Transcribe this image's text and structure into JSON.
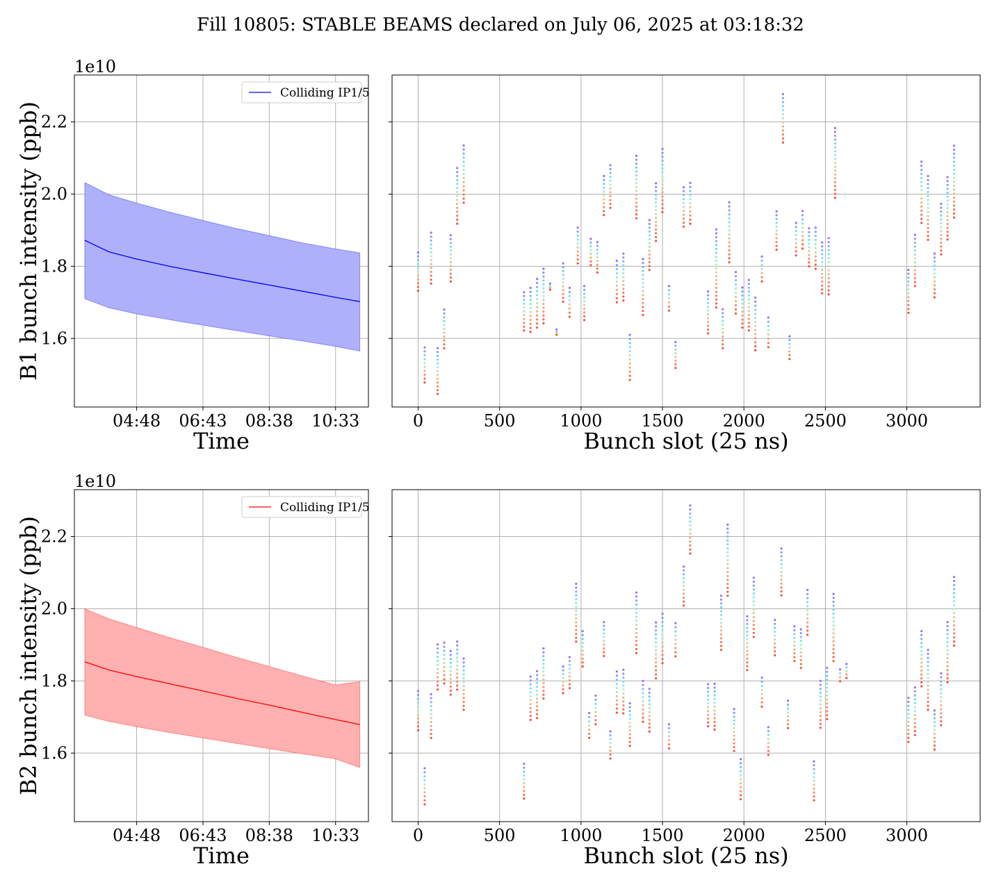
{
  "title": "Fill 10805: STABLE BEAMS declared on July 06, 2025 at 03:18:32",
  "colors": {
    "b1_line": "#0000ff",
    "b1_fill": "#aeb0fa",
    "b2_line": "#ff0000",
    "b2_fill": "#ffb0b0",
    "grid": "#b0b0b0"
  },
  "chart_data": [
    {
      "type": "area",
      "panel": "B1 time",
      "xlabel": "Time",
      "ylabel": "B1 bunch intensity (ppb)",
      "offset_label": "1e10",
      "x_ticks": [
        "04:48",
        "06:43",
        "08:38",
        "10:33"
      ],
      "y_ticks": [
        "1.6",
        "1.8",
        "2.0",
        "2.2"
      ],
      "ylim": [
        1.41,
        2.33
      ],
      "legend": {
        "label": "Colliding IP1/5",
        "position": "top-right"
      },
      "grid": true,
      "series": [
        {
          "x": [
            "03:18",
            "04:00",
            "04:48",
            "05:45",
            "06:43",
            "07:40",
            "08:38",
            "09:35",
            "10:33",
            "11:15"
          ],
          "mean": [
            1.872,
            1.84,
            1.82,
            1.8,
            1.782,
            1.765,
            1.748,
            1.731,
            1.714,
            1.702
          ],
          "upper": [
            2.032,
            1.998,
            1.975,
            1.95,
            1.927,
            1.905,
            1.885,
            1.865,
            1.848,
            1.837
          ],
          "lower": [
            1.71,
            1.685,
            1.668,
            1.652,
            1.637,
            1.622,
            1.607,
            1.593,
            1.578,
            1.565
          ]
        }
      ]
    },
    {
      "type": "scatter",
      "panel": "B1 slots",
      "xlabel": "Bunch slot (25 ns)",
      "x_ticks": [
        "0",
        "500",
        "1000",
        "1500",
        "2000",
        "2500",
        "3000"
      ],
      "xlim": [
        -160,
        3450
      ],
      "ylim": [
        1.41,
        2.33
      ],
      "grid": true,
      "columns": [
        [
          0,
          1.732,
          1.838
        ],
        [
          40,
          1.478,
          1.575
        ],
        [
          80,
          1.752,
          1.893
        ],
        [
          120,
          1.446,
          1.573
        ],
        [
          160,
          1.573,
          1.68
        ],
        [
          200,
          1.758,
          1.886
        ],
        [
          240,
          1.918,
          2.072
        ],
        [
          280,
          1.976,
          2.135
        ],
        [
          650,
          1.622,
          1.728
        ],
        [
          690,
          1.618,
          1.74
        ],
        [
          730,
          1.63,
          1.765
        ],
        [
          770,
          1.642,
          1.793
        ],
        [
          810,
          1.735,
          1.752
        ],
        [
          850,
          1.61,
          1.625
        ],
        [
          890,
          1.702,
          1.808
        ],
        [
          930,
          1.66,
          1.74
        ],
        [
          980,
          1.808,
          1.907
        ],
        [
          1020,
          1.651,
          1.745
        ],
        [
          1060,
          1.803,
          1.876
        ],
        [
          1100,
          1.783,
          1.867
        ],
        [
          1140,
          1.942,
          2.05
        ],
        [
          1180,
          1.962,
          2.08
        ],
        [
          1220,
          1.7,
          1.815
        ],
        [
          1260,
          1.705,
          1.835
        ],
        [
          1300,
          1.485,
          1.61
        ],
        [
          1340,
          1.933,
          2.106
        ],
        [
          1380,
          1.665,
          1.82
        ],
        [
          1420,
          1.79,
          1.928
        ],
        [
          1460,
          1.87,
          2.03
        ],
        [
          1500,
          1.95,
          2.125
        ],
        [
          1540,
          1.677,
          1.745
        ],
        [
          1580,
          1.518,
          1.59
        ],
        [
          1630,
          1.91,
          2.019
        ],
        [
          1670,
          1.918,
          2.031
        ],
        [
          1780,
          1.614,
          1.73
        ],
        [
          1830,
          1.686,
          1.902
        ],
        [
          1870,
          1.573,
          1.681
        ],
        [
          1910,
          1.811,
          1.977
        ],
        [
          1950,
          1.669,
          1.784
        ],
        [
          1990,
          1.63,
          1.741
        ],
        [
          2030,
          1.622,
          1.762
        ],
        [
          2070,
          1.567,
          1.713
        ],
        [
          2110,
          1.758,
          1.827
        ],
        [
          2150,
          1.576,
          1.658
        ],
        [
          2200,
          1.846,
          1.952
        ],
        [
          2240,
          2.143,
          2.277
        ],
        [
          2280,
          1.543,
          1.606
        ],
        [
          2320,
          1.83,
          1.92
        ],
        [
          2360,
          1.849,
          1.953
        ],
        [
          2400,
          1.8,
          1.905
        ],
        [
          2440,
          1.793,
          1.907
        ],
        [
          2480,
          1.725,
          1.866
        ],
        [
          2520,
          1.722,
          1.878
        ],
        [
          2560,
          1.99,
          2.183
        ],
        [
          3010,
          1.671,
          1.79
        ],
        [
          3050,
          1.745,
          1.887
        ],
        [
          3090,
          1.92,
          2.09
        ],
        [
          3130,
          1.873,
          2.05
        ],
        [
          3170,
          1.714,
          1.835
        ],
        [
          3210,
          1.833,
          1.973
        ],
        [
          3250,
          1.874,
          2.047
        ],
        [
          3290,
          1.935,
          2.134
        ]
      ]
    },
    {
      "type": "area",
      "panel": "B2 time",
      "xlabel": "Time",
      "ylabel": "B2 bunch intensity (ppb)",
      "offset_label": "1e10",
      "x_ticks": [
        "04:48",
        "06:43",
        "08:38",
        "10:33"
      ],
      "y_ticks": [
        "1.6",
        "1.8",
        "2.0",
        "2.2"
      ],
      "ylim": [
        1.41,
        2.33
      ],
      "legend": {
        "label": "Colliding IP1/5",
        "position": "top-right"
      },
      "grid": true,
      "series": [
        {
          "x": [
            "03:18",
            "04:00",
            "04:48",
            "05:45",
            "06:43",
            "07:40",
            "08:38",
            "09:35",
            "10:33",
            "11:15"
          ],
          "mean": [
            1.853,
            1.83,
            1.812,
            1.792,
            1.772,
            1.752,
            1.733,
            1.713,
            1.693,
            1.679
          ],
          "upper": [
            2.0,
            1.972,
            1.948,
            1.92,
            1.893,
            1.866,
            1.84,
            1.814,
            1.789,
            1.798
          ],
          "lower": [
            1.705,
            1.688,
            1.673,
            1.657,
            1.642,
            1.627,
            1.612,
            1.598,
            1.584,
            1.56
          ]
        }
      ]
    },
    {
      "type": "scatter",
      "panel": "B2 slots",
      "xlabel": "Bunch slot (25 ns)",
      "x_ticks": [
        "0",
        "500",
        "1000",
        "1500",
        "2000",
        "2500",
        "3000"
      ],
      "xlim": [
        -160,
        3450
      ],
      "ylim": [
        1.41,
        2.33
      ],
      "grid": true,
      "columns": [
        [
          0,
          1.663,
          1.772
        ],
        [
          40,
          1.458,
          1.558
        ],
        [
          80,
          1.642,
          1.763
        ],
        [
          120,
          1.776,
          1.901
        ],
        [
          160,
          1.793,
          1.906
        ],
        [
          200,
          1.762,
          1.883
        ],
        [
          240,
          1.776,
          1.909
        ],
        [
          280,
          1.72,
          1.862
        ],
        [
          650,
          1.474,
          1.57
        ],
        [
          690,
          1.692,
          1.812
        ],
        [
          730,
          1.697,
          1.827
        ],
        [
          770,
          1.751,
          1.89
        ],
        [
          890,
          1.766,
          1.84
        ],
        [
          930,
          1.78,
          1.866
        ],
        [
          970,
          1.909,
          2.069
        ],
        [
          1010,
          1.84,
          1.938
        ],
        [
          1050,
          1.642,
          1.711
        ],
        [
          1090,
          1.68,
          1.759
        ],
        [
          1140,
          1.869,
          1.963
        ],
        [
          1180,
          1.585,
          1.66
        ],
        [
          1220,
          1.712,
          1.826
        ],
        [
          1260,
          1.71,
          1.831
        ],
        [
          1300,
          1.62,
          1.738
        ],
        [
          1340,
          1.877,
          2.045
        ],
        [
          1380,
          1.687,
          1.8
        ],
        [
          1420,
          1.66,
          1.778
        ],
        [
          1460,
          1.807,
          1.962
        ],
        [
          1500,
          1.849,
          1.986
        ],
        [
          1540,
          1.613,
          1.68
        ],
        [
          1580,
          1.868,
          1.96
        ],
        [
          1630,
          2.009,
          2.117
        ],
        [
          1670,
          2.153,
          2.286
        ],
        [
          1780,
          1.674,
          1.791
        ],
        [
          1820,
          1.665,
          1.792
        ],
        [
          1860,
          1.886,
          2.036
        ],
        [
          1900,
          2.036,
          2.233
        ],
        [
          1940,
          1.606,
          1.722
        ],
        [
          1980,
          1.472,
          1.583
        ],
        [
          2020,
          1.83,
          1.979
        ],
        [
          2060,
          1.922,
          2.086
        ],
        [
          2110,
          1.729,
          1.809
        ],
        [
          2150,
          1.595,
          1.672
        ],
        [
          2190,
          1.871,
          1.969
        ],
        [
          2230,
          2.037,
          2.167
        ],
        [
          2270,
          1.669,
          1.745
        ],
        [
          2310,
          1.855,
          1.951
        ],
        [
          2350,
          1.836,
          1.943
        ],
        [
          2390,
          1.928,
          2.052
        ],
        [
          2430,
          1.469,
          1.577
        ],
        [
          2470,
          1.67,
          1.8
        ],
        [
          2510,
          1.694,
          1.836
        ],
        [
          2550,
          1.855,
          2.041
        ],
        [
          2590,
          1.799,
          1.832
        ],
        [
          2630,
          1.808,
          1.847
        ],
        [
          3010,
          1.631,
          1.753
        ],
        [
          3050,
          1.65,
          1.782
        ],
        [
          3090,
          1.785,
          1.938
        ],
        [
          3130,
          1.72,
          1.886
        ],
        [
          3170,
          1.61,
          1.718
        ],
        [
          3210,
          1.677,
          1.821
        ],
        [
          3250,
          1.796,
          1.963
        ],
        [
          3290,
          1.898,
          2.088
        ]
      ]
    }
  ]
}
